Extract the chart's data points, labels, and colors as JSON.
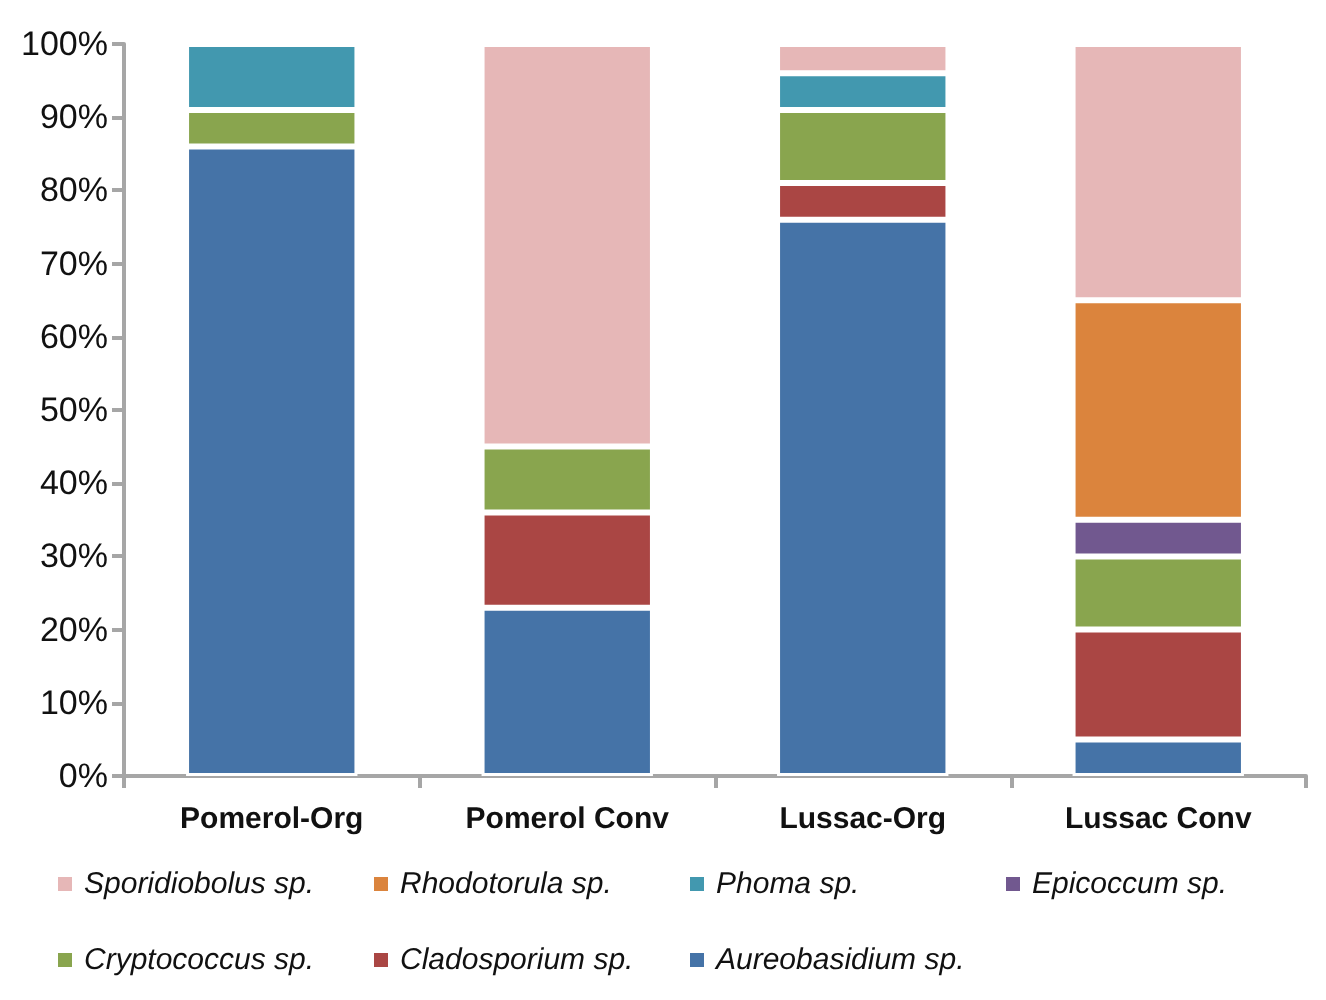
{
  "chart_data": {
    "type": "bar",
    "stacked": true,
    "categories": [
      "Pomerol-Org",
      "Pomerol Conv",
      "Lussac-Org",
      "Lussac Conv"
    ],
    "series": [
      {
        "name": "Aureobasidium sp.",
        "color": "#4573a7",
        "values": [
          86,
          23,
          76,
          5
        ]
      },
      {
        "name": "Cladosporium sp.",
        "color": "#aa4644",
        "values": [
          0,
          13,
          5,
          15
        ]
      },
      {
        "name": "Cryptococcus sp.",
        "color": "#89a54e",
        "values": [
          5,
          9,
          10,
          10
        ]
      },
      {
        "name": "Epicoccum sp.",
        "color": "#71588f",
        "values": [
          0,
          0,
          0,
          5
        ]
      },
      {
        "name": "Phoma sp.",
        "color": "#4298af",
        "values": [
          9,
          0,
          5,
          0
        ]
      },
      {
        "name": "Rhodotorula sp.",
        "color": "#db843d",
        "values": [
          0,
          0,
          0,
          30
        ]
      },
      {
        "name": "Sporidiobolus sp.",
        "color": "#e6b7b7",
        "values": [
          0,
          55,
          4,
          35
        ]
      }
    ],
    "ylim": [
      0,
      100
    ],
    "yticks": [
      {
        "value": 0,
        "label": "0%"
      },
      {
        "value": 10,
        "label": "10%"
      },
      {
        "value": 20,
        "label": "20%"
      },
      {
        "value": 30,
        "label": "30%"
      },
      {
        "value": 40,
        "label": "40%"
      },
      {
        "value": 50,
        "label": "50%"
      },
      {
        "value": 60,
        "label": "60%"
      },
      {
        "value": 70,
        "label": "70%"
      },
      {
        "value": 80,
        "label": "80%"
      },
      {
        "value": 90,
        "label": "90%"
      },
      {
        "value": 100,
        "label": "100%"
      }
    ],
    "grid": false,
    "legend": "bottom"
  }
}
